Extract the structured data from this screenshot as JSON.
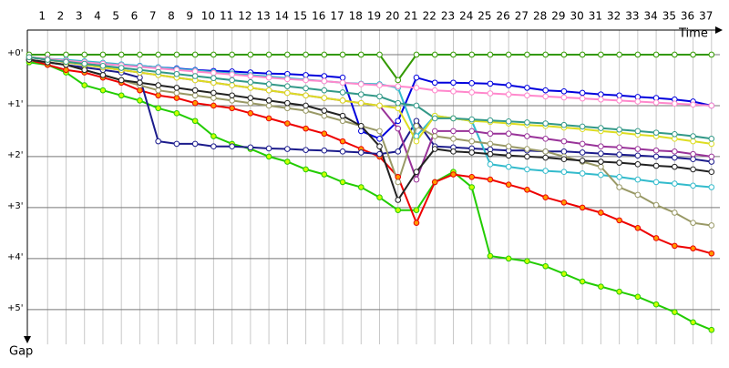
{
  "chart_data": {
    "type": "line",
    "x_label": "Time",
    "y_label": "Gap",
    "x": [
      0,
      1,
      2,
      3,
      4,
      5,
      6,
      7,
      8,
      9,
      10,
      11,
      12,
      13,
      14,
      15,
      16,
      17,
      18,
      19,
      20,
      21,
      22,
      23,
      24,
      25,
      26,
      27,
      28,
      29,
      30,
      31,
      32,
      33,
      34,
      35,
      36,
      37
    ],
    "xlim": [
      0,
      37.8
    ],
    "xticks": [
      1,
      2,
      3,
      4,
      5,
      6,
      7,
      8,
      9,
      10,
      11,
      12,
      13,
      14,
      15,
      16,
      17,
      18,
      19,
      20,
      21,
      22,
      23,
      24,
      25,
      26,
      27,
      28,
      29,
      30,
      31,
      32,
      33,
      34,
      35,
      36,
      37
    ],
    "ylim": [
      -0.5,
      5.7
    ],
    "yticks": [
      {
        "value": 0,
        "label": "+0'"
      },
      {
        "value": 1,
        "label": "+1'"
      },
      {
        "value": 2,
        "label": "+2'"
      },
      {
        "value": 3,
        "label": "+3'"
      },
      {
        "value": 4,
        "label": "+4'"
      },
      {
        "value": 5,
        "label": "+5'"
      }
    ],
    "grid": true,
    "series": [
      {
        "color": "#339900",
        "values": [
          0,
          0,
          0,
          0,
          0,
          0,
          0,
          0,
          0,
          0,
          0,
          0,
          0,
          0,
          0,
          0,
          0,
          0,
          0,
          0,
          0.5,
          0,
          0,
          0,
          0,
          0,
          0,
          0,
          0,
          0,
          0,
          0,
          0,
          0,
          0,
          0,
          0,
          0
        ]
      },
      {
        "color": "#22cc00",
        "marker_color": "#ccff00",
        "values": [
          0.15,
          0.2,
          0.35,
          0.6,
          0.7,
          0.8,
          0.9,
          1.05,
          1.15,
          1.3,
          1.6,
          1.75,
          1.85,
          2.0,
          2.1,
          2.25,
          2.35,
          2.5,
          2.6,
          2.8,
          3.05,
          3.05,
          2.5,
          2.3,
          2.6,
          3.95,
          4.0,
          4.05,
          4.15,
          4.3,
          4.45,
          4.55,
          4.65,
          4.75,
          4.9,
          5.05,
          5.25,
          5.4
        ]
      },
      {
        "color": "#ee0000",
        "marker_color": "#ff9900",
        "values": [
          0.1,
          0.2,
          0.3,
          0.35,
          0.45,
          0.55,
          0.7,
          0.8,
          0.85,
          0.95,
          1.0,
          1.05,
          1.15,
          1.25,
          1.35,
          1.45,
          1.55,
          1.7,
          1.85,
          2.0,
          2.4,
          3.3,
          2.5,
          2.35,
          2.4,
          2.45,
          2.55,
          2.65,
          2.8,
          2.9,
          3.0,
          3.1,
          3.25,
          3.4,
          3.6,
          3.75,
          3.8,
          3.9
        ]
      },
      {
        "color": "#1c1c8c",
        "values": [
          0.1,
          0.15,
          0.2,
          0.25,
          0.3,
          0.35,
          0.45,
          1.7,
          1.75,
          1.75,
          1.8,
          1.8,
          1.82,
          1.84,
          1.85,
          1.87,
          1.88,
          1.9,
          1.92,
          1.95,
          1.9,
          1.3,
          1.8,
          1.82,
          1.84,
          1.86,
          1.88,
          1.88,
          1.9,
          1.9,
          1.92,
          1.94,
          1.96,
          1.98,
          2.0,
          2.02,
          2.05,
          2.1
        ]
      },
      {
        "color": "#0000dd",
        "values": [
          0.05,
          0.1,
          0.12,
          0.15,
          0.18,
          0.2,
          0.22,
          0.25,
          0.27,
          0.3,
          0.32,
          0.33,
          0.35,
          0.37,
          0.38,
          0.4,
          0.42,
          0.45,
          1.5,
          1.65,
          1.3,
          0.45,
          0.55,
          0.55,
          0.56,
          0.57,
          0.6,
          0.65,
          0.7,
          0.72,
          0.75,
          0.78,
          0.8,
          0.83,
          0.85,
          0.88,
          0.92,
          1.0
        ]
      },
      {
        "color": "#33bbcc",
        "values": [
          0.05,
          0.08,
          0.1,
          0.13,
          0.16,
          0.19,
          0.22,
          0.25,
          0.28,
          0.31,
          0.34,
          0.37,
          0.4,
          0.43,
          0.46,
          0.49,
          0.52,
          0.55,
          0.57,
          0.58,
          0.65,
          1.6,
          1.2,
          1.25,
          1.3,
          2.15,
          2.2,
          2.25,
          2.28,
          2.3,
          2.33,
          2.36,
          2.4,
          2.45,
          2.5,
          2.53,
          2.57,
          2.6
        ]
      },
      {
        "color": "#993399",
        "values": [
          0.05,
          0.1,
          0.15,
          0.2,
          0.25,
          0.3,
          0.35,
          0.4,
          0.45,
          0.5,
          0.55,
          0.6,
          0.65,
          0.7,
          0.75,
          0.8,
          0.85,
          0.9,
          0.95,
          1.0,
          1.45,
          2.45,
          1.5,
          1.5,
          1.5,
          1.55,
          1.55,
          1.6,
          1.65,
          1.7,
          1.75,
          1.8,
          1.82,
          1.85,
          1.88,
          1.9,
          1.95,
          2.0
        ]
      },
      {
        "color": "#ff88cc",
        "values": [
          0.05,
          0.08,
          0.12,
          0.15,
          0.18,
          0.21,
          0.24,
          0.27,
          0.3,
          0.33,
          0.36,
          0.39,
          0.42,
          0.45,
          0.48,
          0.5,
          0.52,
          0.55,
          0.58,
          0.6,
          0.62,
          0.65,
          0.7,
          0.72,
          0.74,
          0.76,
          0.78,
          0.8,
          0.82,
          0.84,
          0.86,
          0.88,
          0.9,
          0.92,
          0.94,
          0.96,
          0.98,
          1.0
        ]
      },
      {
        "color": "#999966",
        "values": [
          0.1,
          0.15,
          0.2,
          0.3,
          0.4,
          0.5,
          0.6,
          0.7,
          0.75,
          0.8,
          0.85,
          0.9,
          0.95,
          1.0,
          1.05,
          1.1,
          1.2,
          1.3,
          1.4,
          1.5,
          2.5,
          1.4,
          1.6,
          1.65,
          1.7,
          1.75,
          1.8,
          1.85,
          1.9,
          2.0,
          2.1,
          2.2,
          2.6,
          2.75,
          2.95,
          3.1,
          3.3,
          3.35
        ]
      },
      {
        "color": "#222222",
        "values": [
          0.1,
          0.15,
          0.2,
          0.3,
          0.4,
          0.5,
          0.55,
          0.6,
          0.65,
          0.7,
          0.75,
          0.8,
          0.85,
          0.9,
          0.95,
          1.0,
          1.1,
          1.2,
          1.4,
          1.8,
          2.85,
          2.3,
          1.85,
          1.9,
          1.92,
          1.95,
          1.98,
          2.0,
          2.02,
          2.05,
          2.08,
          2.1,
          2.12,
          2.15,
          2.18,
          2.2,
          2.25,
          2.3
        ]
      },
      {
        "color": "#dddd22",
        "values": [
          0.05,
          0.1,
          0.15,
          0.2,
          0.25,
          0.3,
          0.35,
          0.4,
          0.45,
          0.5,
          0.55,
          0.6,
          0.65,
          0.7,
          0.75,
          0.8,
          0.85,
          0.9,
          0.95,
          1.0,
          1.05,
          1.7,
          1.2,
          1.25,
          1.3,
          1.32,
          1.35,
          1.38,
          1.4,
          1.43,
          1.46,
          1.5,
          1.53,
          1.57,
          1.6,
          1.65,
          1.7,
          1.75
        ]
      },
      {
        "color": "#339988",
        "values": [
          0.05,
          0.1,
          0.14,
          0.18,
          0.22,
          0.26,
          0.3,
          0.34,
          0.38,
          0.42,
          0.46,
          0.5,
          0.54,
          0.58,
          0.62,
          0.66,
          0.7,
          0.74,
          0.78,
          0.82,
          0.95,
          1.0,
          1.25,
          1.25,
          1.27,
          1.29,
          1.31,
          1.33,
          1.35,
          1.38,
          1.41,
          1.44,
          1.47,
          1.5,
          1.53,
          1.56,
          1.6,
          1.65
        ]
      }
    ]
  }
}
